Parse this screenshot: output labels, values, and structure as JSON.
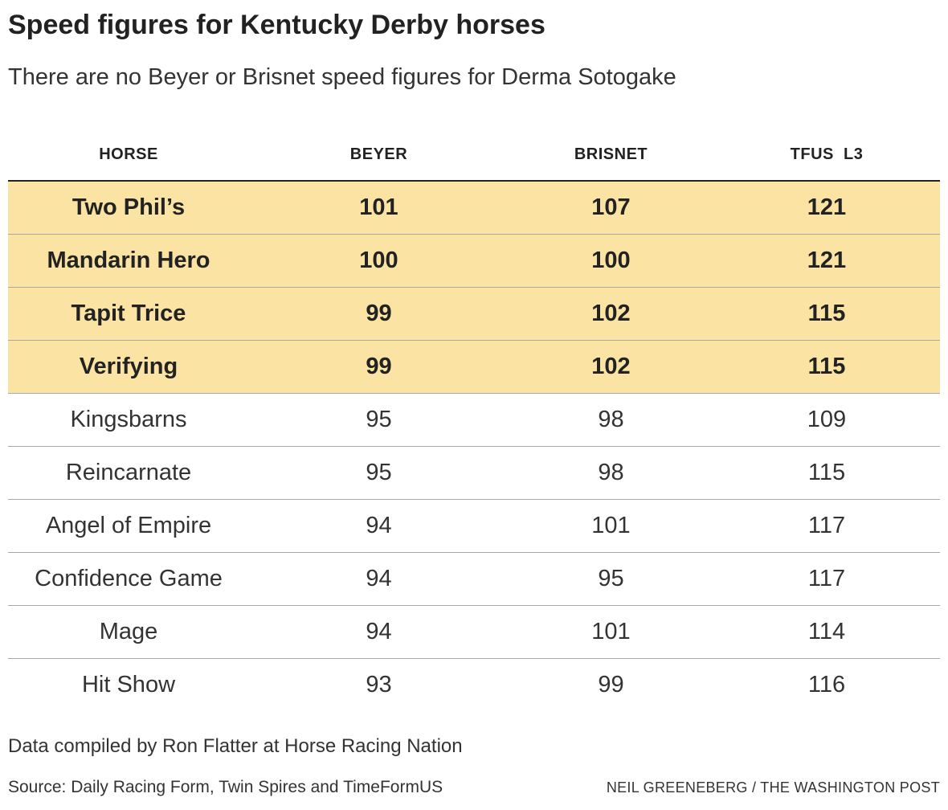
{
  "title": "Speed figures for Kentucky Derby horses",
  "subtitle": "There are no Beyer or Brisnet speed figures for Derma Sotogake",
  "highlight_color": "#fbe4a3",
  "chart_data": {
    "type": "table",
    "columns": [
      "HORSE",
      "BEYER",
      "BRISNET",
      "TFUS  L3"
    ],
    "rows": [
      {
        "horse": "Two Phil’s",
        "beyer": "101",
        "brisnet": "107",
        "tfus": "121",
        "highlight": true
      },
      {
        "horse": "Mandarin Hero",
        "beyer": "100",
        "brisnet": "100",
        "tfus": "121",
        "highlight": true
      },
      {
        "horse": "Tapit Trice",
        "beyer": "99",
        "brisnet": "102",
        "tfus": "115",
        "highlight": true
      },
      {
        "horse": "Verifying",
        "beyer": "99",
        "brisnet": "102",
        "tfus": "115",
        "highlight": true
      },
      {
        "horse": "Kingsbarns",
        "beyer": "95",
        "brisnet": "98",
        "tfus": "109",
        "highlight": false
      },
      {
        "horse": "Reincarnate",
        "beyer": "95",
        "brisnet": "98",
        "tfus": "115",
        "highlight": false
      },
      {
        "horse": "Angel of Empire",
        "beyer": "94",
        "brisnet": "101",
        "tfus": "117",
        "highlight": false
      },
      {
        "horse": "Confidence Game",
        "beyer": "94",
        "brisnet": "95",
        "tfus": "117",
        "highlight": false
      },
      {
        "horse": "Mage",
        "beyer": "94",
        "brisnet": "101",
        "tfus": "114",
        "highlight": false
      },
      {
        "horse": "Hit Show",
        "beyer": "93",
        "brisnet": "99",
        "tfus": "116",
        "highlight": false
      }
    ]
  },
  "footer": {
    "note": "Data compiled by Ron Flatter at Horse Racing Nation",
    "source": "Source: Daily Racing Form, Twin Spires and TimeFormUS",
    "credit": "NEIL GREENEBERG / THE WASHINGTON POST"
  }
}
